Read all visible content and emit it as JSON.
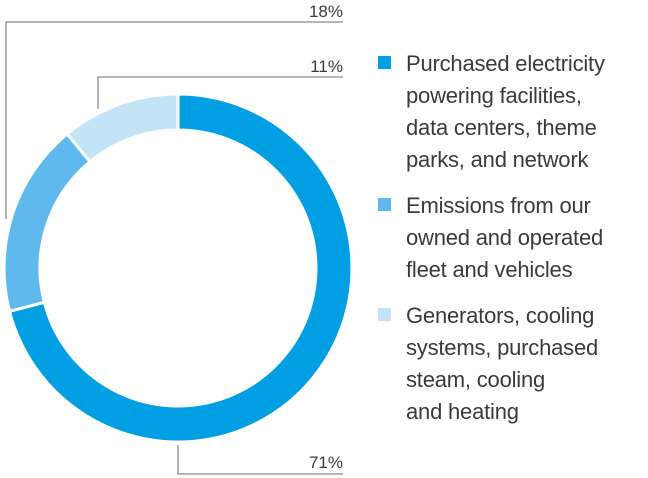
{
  "chart_data": {
    "type": "pie",
    "donut": true,
    "categories": [
      "Purchased electricity powering facilities, data centers, theme parks, and network",
      "Emissions from our owned and operated fleet and vehicles",
      "Generators, cooling systems, purchased steam, cooling and heating"
    ],
    "values": [
      71,
      18,
      11
    ],
    "value_labels": [
      "71%",
      "18%",
      "11%"
    ],
    "colors": [
      "#009fe3",
      "#5fb9ec",
      "#c3e3f7"
    ],
    "legend_position": "right"
  },
  "legend": {
    "items": [
      {
        "lines": [
          "Purchased electricity",
          "powering facilities,",
          "data centers, theme",
          "parks, and network"
        ],
        "color": "#009fe3"
      },
      {
        "lines": [
          "Emissions from our",
          "owned and operated",
          "fleet and vehicles"
        ],
        "color": "#5fb9ec"
      },
      {
        "lines": [
          "Generators, cooling",
          "systems, purchased",
          "steam, cooling",
          "and heating"
        ],
        "color": "#c3e3f7"
      }
    ]
  }
}
